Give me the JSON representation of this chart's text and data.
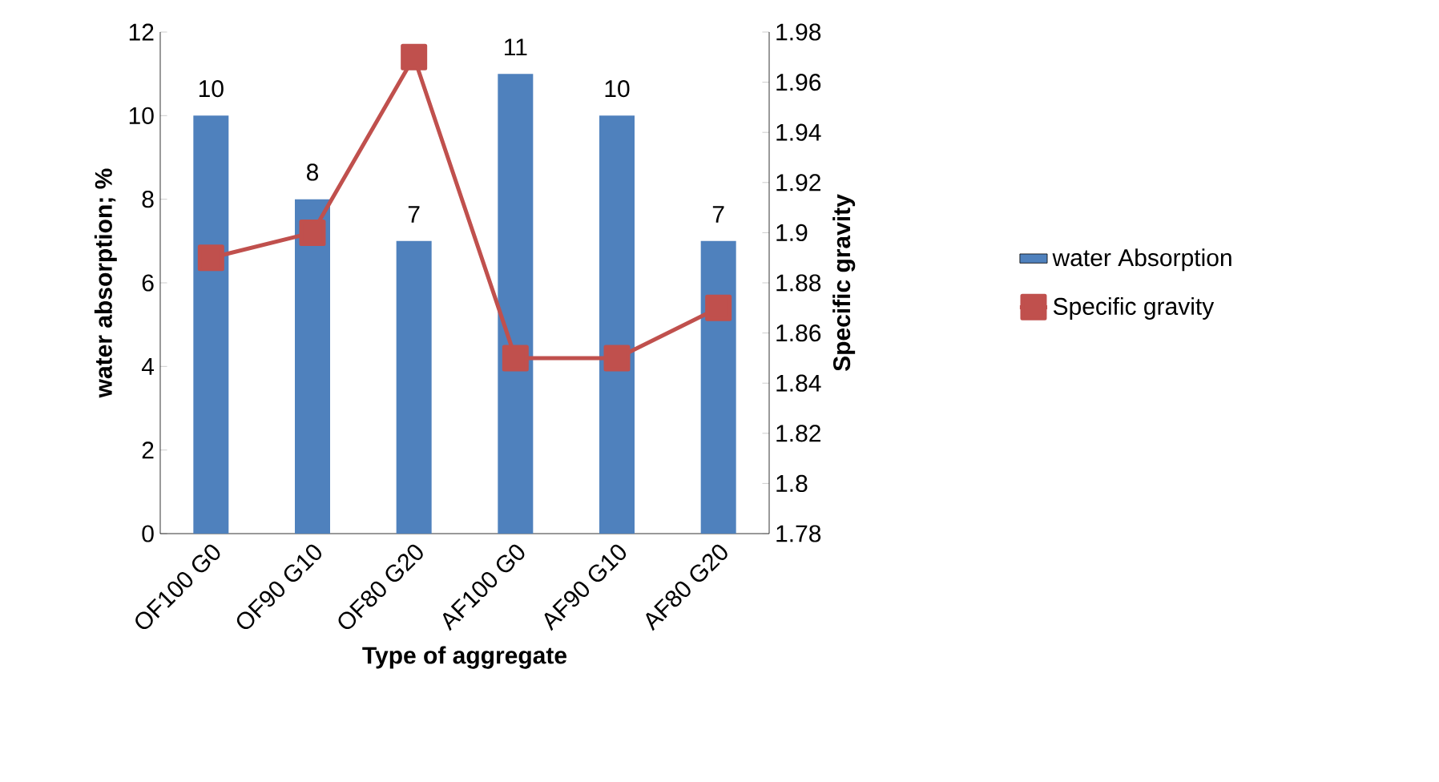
{
  "chart_data": {
    "type": "bar",
    "xlabel": "Type of aggregate",
    "ylabel": "water absorption; %",
    "y2label": "Specific gravity",
    "categories": [
      "OF100 G0",
      "OF90 G10",
      "OF80 G20",
      "AF100 G0",
      "AF90 G10",
      "AF80 G20"
    ],
    "series": [
      {
        "name": "water Absorption",
        "color": "#4f81bd",
        "values": [
          10,
          8,
          7,
          11,
          10,
          7
        ],
        "data_labels": true
      },
      {
        "name": "Specific gravity",
        "type": "line",
        "axis": "y2",
        "color": "#c0504d",
        "marker": "square",
        "line_style": "solid",
        "values": [
          1.89,
          1.9,
          1.97,
          1.85,
          1.85,
          1.87
        ]
      }
    ],
    "ylim": [
      0,
      12
    ],
    "yticks": [
      0,
      2,
      4,
      6,
      8,
      10,
      12
    ],
    "y2lim": [
      1.78,
      1.98
    ],
    "y2ticks": [
      1.78,
      1.8,
      1.82,
      1.84,
      1.86,
      1.88,
      1.9,
      1.92,
      1.94,
      1.96,
      1.98
    ],
    "grid": false,
    "legend": "right"
  }
}
